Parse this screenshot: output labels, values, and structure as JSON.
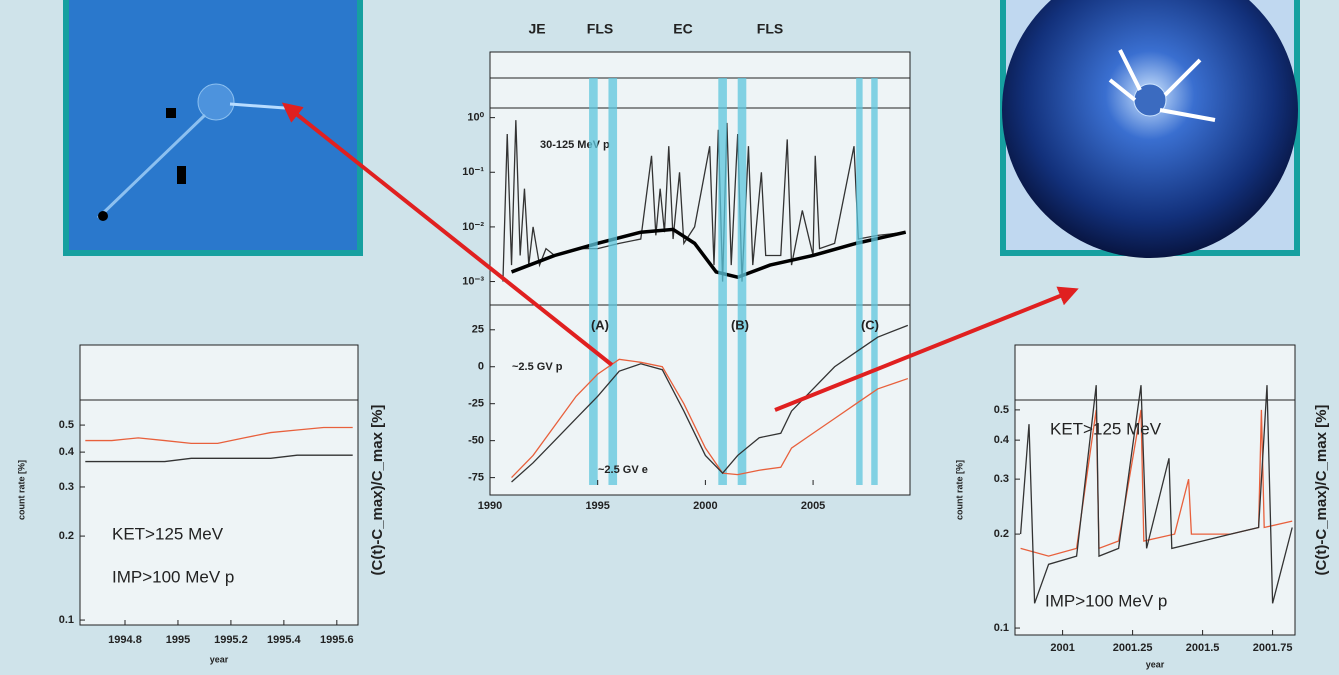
{
  "chart_data": [
    {
      "type": "line",
      "log_y": true,
      "epochs": [
        "JE",
        "FLS",
        "EC",
        "FLS"
      ],
      "xlim": [
        1990,
        2009.5
      ],
      "ylim": [
        0.0005,
        1.5
      ],
      "yticks": [
        {
          "value": 1,
          "label": "10⁰"
        },
        {
          "value": 0.1,
          "label": "10⁻¹"
        },
        {
          "value": 0.01,
          "label": "10⁻²"
        },
        {
          "value": 0.001,
          "label": "10⁻³"
        }
      ],
      "series": [
        {
          "name": "30-125 MeV p",
          "color": "#333333",
          "x": [
            1990.6,
            1990.8,
            1991.0,
            1991.2,
            1991.4,
            1991.6,
            1991.8,
            1992.0,
            1992.3,
            1992.6,
            1993,
            1994,
            1995,
            1996,
            1997,
            1997.5,
            1997.7,
            1997.9,
            1998.1,
            1998.3,
            1998.5,
            1998.8,
            1999,
            1999.5,
            2000.2,
            2000.4,
            2000.6,
            2000.8,
            2001.0,
            2001.2,
            2001.5,
            2001.7,
            2002,
            2002.2,
            2002.6,
            2002.8,
            2003.5,
            2003.8,
            2004,
            2004.5,
            2005,
            2005.1,
            2005.3,
            2006,
            2006.9,
            2007.1,
            2008,
            2009.3
          ],
          "values": [
            0.001,
            0.5,
            0.002,
            0.9,
            0.003,
            0.05,
            0.002,
            0.01,
            0.002,
            0.004,
            0.003,
            0.004,
            0.004,
            0.005,
            0.006,
            0.2,
            0.007,
            0.05,
            0.008,
            0.3,
            0.006,
            0.1,
            0.005,
            0.01,
            0.3,
            0.002,
            0.6,
            0.001,
            0.8,
            0.002,
            0.5,
            0.001,
            0.3,
            0.002,
            0.1,
            0.003,
            0.003,
            0.4,
            0.002,
            0.02,
            0.003,
            0.2,
            0.004,
            0.005,
            0.3,
            0.006,
            0.007,
            0.008
          ]
        },
        {
          "color": "#000000",
          "width": 3.5,
          "x": [
            1991,
            1993,
            1995,
            1997,
            1998.5,
            1999.5,
            2000.5,
            2001.5,
            2003,
            2005,
            2007,
            2009.3
          ],
          "values": [
            0.0015,
            0.003,
            0.005,
            0.008,
            0.009,
            0.005,
            0.0015,
            0.0012,
            0.002,
            0.003,
            0.005,
            0.008
          ]
        }
      ]
    },
    {
      "type": "line",
      "log_y": false,
      "xlim": [
        1990,
        2009.5
      ],
      "ylim": [
        -80,
        35
      ],
      "xticks": [
        1990,
        1995,
        2000,
        2005
      ],
      "yticks": [
        25,
        0,
        -25,
        -50,
        -75
      ],
      "annotations": [
        "(A)",
        "(B)",
        "(C)"
      ],
      "band_color": "#5cc6dc",
      "bands": [
        [
          1994.6,
          1995.0
        ],
        [
          1995.5,
          1995.9
        ],
        [
          2000.6,
          2001.0
        ],
        [
          2001.5,
          2001.9
        ],
        [
          2007.0,
          2007.3
        ],
        [
          2007.7,
          2008.0
        ]
      ],
      "series": [
        {
          "name": "~2.5 GV p",
          "color": "#e8603c",
          "x": [
            1991,
            1992,
            1993,
            1994,
            1995,
            1996,
            1997,
            1998,
            1999,
            2000,
            2000.8,
            2001.5,
            2002.5,
            2003.5,
            2004,
            2005,
            2006,
            2007,
            2008,
            2009.4
          ],
          "values": [
            -75,
            -60,
            -40,
            -20,
            -5,
            5,
            3,
            0,
            -25,
            -55,
            -72,
            -73,
            -70,
            -68,
            -55,
            -45,
            -35,
            -25,
            -15,
            -8
          ]
        },
        {
          "name": "~2.5 GV e",
          "color": "#333333",
          "x": [
            1991,
            1992,
            1993,
            1994,
            1995,
            1996,
            1997,
            1998,
            1999,
            2000,
            2000.8,
            2001.5,
            2002.5,
            2003.5,
            2004,
            2005,
            2006,
            2007,
            2008,
            2009.4
          ],
          "values": [
            -78,
            -65,
            -50,
            -35,
            -20,
            -3,
            2,
            -2,
            -30,
            -60,
            -72,
            -60,
            -48,
            -45,
            -30,
            -15,
            0,
            10,
            20,
            28
          ]
        }
      ]
    },
    {
      "type": "line",
      "log_y": true,
      "xlim": [
        1994.63,
        1995.68
      ],
      "ylim": [
        0.096,
        0.615
      ],
      "xticks": [
        1994.8,
        1995,
        1995.2,
        1995.4,
        1995.6
      ],
      "yticks": [
        0.5,
        0.4,
        0.3,
        0.2,
        0.1
      ],
      "x_label": "year",
      "y_label": "count rate [%]",
      "y2_label": "(C(t)-C_max)/C_max [%]",
      "series": [
        {
          "name": "KET>125 MeV",
          "color": "#e8603c",
          "x": [
            1994.65,
            1994.75,
            1994.85,
            1994.95,
            1995.05,
            1995.15,
            1995.25,
            1995.35,
            1995.45,
            1995.55,
            1995.66
          ],
          "values": [
            0.44,
            0.44,
            0.45,
            0.44,
            0.43,
            0.43,
            0.45,
            0.47,
            0.48,
            0.49,
            0.49
          ]
        },
        {
          "name": "IMP>100 MeV p",
          "color": "#333333",
          "x": [
            1994.65,
            1994.75,
            1994.85,
            1994.95,
            1995.05,
            1995.15,
            1995.25,
            1995.35,
            1995.45,
            1995.55,
            1995.66
          ],
          "values": [
            0.37,
            0.37,
            0.37,
            0.37,
            0.38,
            0.38,
            0.38,
            0.38,
            0.39,
            0.39,
            0.39
          ]
        }
      ]
    },
    {
      "type": "line",
      "log_y": true,
      "xlim": [
        2000.83,
        2001.83
      ],
      "ylim": [
        0.095,
        0.807
      ],
      "xticks": [
        2001,
        2001.25,
        2001.5,
        2001.75
      ],
      "yticks": [
        0.5,
        0.4,
        0.3,
        0.2,
        0.1
      ],
      "x_label": "year",
      "y_label": "count rate [%]",
      "y2_label": "(C(t)-C_max)/C_max [%]",
      "series": [
        {
          "name": "KET>125 MeV",
          "color": "#e8603c",
          "x": [
            2000.85,
            2000.95,
            2001.05,
            2001.12,
            2001.13,
            2001.2,
            2001.28,
            2001.29,
            2001.4,
            2001.45,
            2001.46,
            2001.6,
            2001.7,
            2001.71,
            2001.72,
            2001.82
          ],
          "values": [
            0.18,
            0.17,
            0.18,
            0.5,
            0.18,
            0.19,
            0.5,
            0.19,
            0.2,
            0.3,
            0.2,
            0.2,
            0.21,
            0.5,
            0.21,
            0.22
          ]
        },
        {
          "name": "IMP>100 MeV p",
          "color": "#333333",
          "x": [
            2000.85,
            2000.88,
            2000.9,
            2000.95,
            2001.05,
            2001.12,
            2001.13,
            2001.2,
            2001.28,
            2001.3,
            2001.38,
            2001.39,
            2001.5,
            2001.6,
            2001.7,
            2001.73,
            2001.75,
            2001.82
          ],
          "values": [
            0.2,
            0.45,
            0.12,
            0.16,
            0.17,
            0.6,
            0.17,
            0.18,
            0.6,
            0.18,
            0.35,
            0.18,
            0.19,
            0.2,
            0.21,
            0.6,
            0.12,
            0.21
          ]
        }
      ]
    }
  ]
}
